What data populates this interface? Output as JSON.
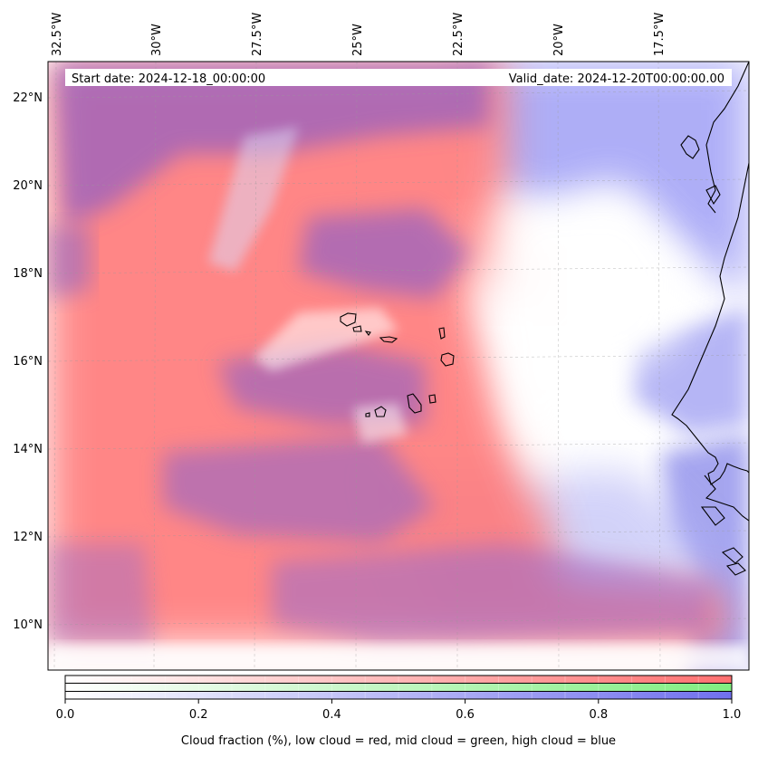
{
  "map": {
    "start_date": "Start date: 2024-12-18_00:00:00",
    "valid_date": "Valid_date: 2024-12-20T00:00:00.00",
    "lon_labels": [
      "32.5°W",
      "30°W",
      "27.5°W",
      "25°W",
      "22.5°W",
      "20°W",
      "17.5°W"
    ],
    "lat_labels": [
      "22°N",
      "20°N",
      "18°N",
      "16°N",
      "14°N",
      "12°N",
      "10°N"
    ]
  },
  "colorbar": {
    "ticks": [
      "0.0",
      "0.2",
      "0.4",
      "0.6",
      "0.8",
      "1.0"
    ],
    "label": "Cloud fraction (%), low cloud = red, mid cloud = green, high cloud = blue",
    "colors": {
      "low": "#ff7070",
      "mid": "#80ee80",
      "high": "#7070ee"
    }
  }
}
